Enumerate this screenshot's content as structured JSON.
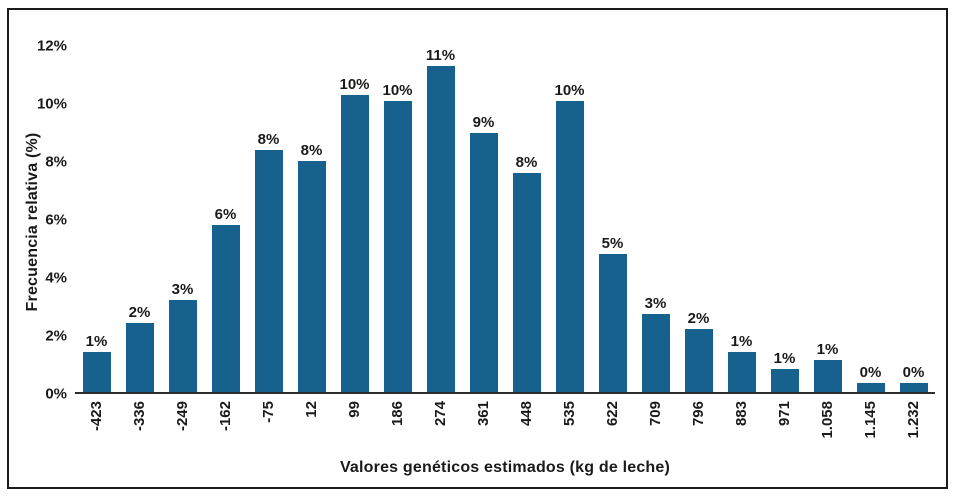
{
  "figure": {
    "background_color": "#ffffff",
    "frame_border_color": "#1b1b1b",
    "axis_line_color": "#2e2e2e",
    "text_color": "#1a1a1a"
  },
  "chart_data": {
    "type": "bar",
    "title": "",
    "xlabel": "Valores genéticos estimados (kg de leche)",
    "ylabel": "Frecuencia relativa (%)",
    "bar_color": "#17618f",
    "grid": false,
    "legend_position": "none",
    "ylim": [
      0,
      12
    ],
    "y_ticks": [
      {
        "value": 0,
        "label": "0%"
      },
      {
        "value": 2,
        "label": "2%"
      },
      {
        "value": 4,
        "label": "4%"
      },
      {
        "value": 6,
        "label": "6%"
      },
      {
        "value": 8,
        "label": "8%"
      },
      {
        "value": 10,
        "label": "10%"
      },
      {
        "value": 12,
        "label": "12%"
      }
    ],
    "categories": [
      "-423",
      "-336",
      "-249",
      "-162",
      "-75",
      "12",
      "99",
      "186",
      "274",
      "361",
      "448",
      "535",
      "622",
      "709",
      "796",
      "883",
      "971",
      "1.058",
      "1.145",
      "1.232"
    ],
    "values": [
      1.4,
      2.4,
      3.2,
      5.8,
      8.4,
      8.0,
      10.3,
      10.1,
      11.3,
      9.0,
      7.6,
      10.1,
      4.8,
      2.7,
      2.2,
      1.4,
      0.8,
      1.1,
      0.3,
      0.3
    ],
    "bar_labels": [
      "1%",
      "2%",
      "3%",
      "6%",
      "8%",
      "8%",
      "10%",
      "10%",
      "11%",
      "9%",
      "8%",
      "10%",
      "5%",
      "3%",
      "2%",
      "1%",
      "1%",
      "1%",
      "0%",
      "0%"
    ],
    "x_tick_rotation_degrees": -90
  }
}
